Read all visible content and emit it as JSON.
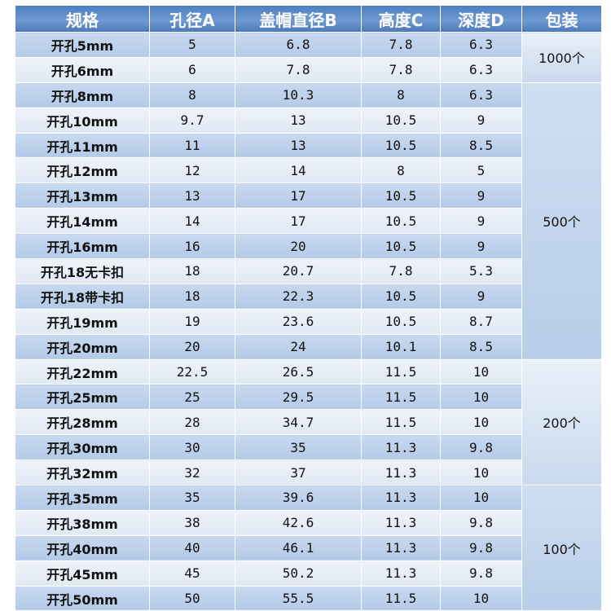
{
  "header": [
    "规格",
    "孔径A",
    "盖帽直径B",
    "高度C",
    "深度D",
    "包装"
  ],
  "rows": [
    [
      "开孔5mm",
      "5",
      "6.8",
      "7.8",
      "6.3"
    ],
    [
      "开孔6mm",
      "6",
      "7.8",
      "7.8",
      "6.3"
    ],
    [
      "开孔8mm",
      "8",
      "10.3",
      "8",
      "6.3"
    ],
    [
      "开孔10mm",
      "9.7",
      "13",
      "10.5",
      "9"
    ],
    [
      "开孔11mm",
      "11",
      "13",
      "10.5",
      "8.5"
    ],
    [
      "开孔12mm",
      "12",
      "14",
      "8",
      "5"
    ],
    [
      "开孔13mm",
      "13",
      "17",
      "10.5",
      "9"
    ],
    [
      "开孔14mm",
      "14",
      "17",
      "10.5",
      "9"
    ],
    [
      "开孔16mm",
      "16",
      "20",
      "10.5",
      "9"
    ],
    [
      "开孔18无卡扣",
      "18",
      "20.7",
      "7.8",
      "5.3"
    ],
    [
      "开孔18带卡扣",
      "18",
      "22.3",
      "10.5",
      "9"
    ],
    [
      "开孔19mm",
      "19",
      "23.6",
      "10.5",
      "8.7"
    ],
    [
      "开孔20mm",
      "20",
      "24",
      "10.1",
      "8.5"
    ],
    [
      "开孔22mm",
      "22.5",
      "26.5",
      "11.5",
      "10"
    ],
    [
      "开孔25mm",
      "25",
      "29.5",
      "11.5",
      "10"
    ],
    [
      "开孔28mm",
      "28",
      "34.7",
      "11.5",
      "10"
    ],
    [
      "开孔30mm",
      "30",
      "35",
      "11.3",
      "9.8"
    ],
    [
      "开孔32mm",
      "32",
      "37",
      "11.3",
      "10"
    ],
    [
      "开孔35mm",
      "35",
      "39.6",
      "11.3",
      "10"
    ],
    [
      "开孔38mm",
      "38",
      "42.6",
      "11.3",
      "9.8"
    ],
    [
      "开孔40mm",
      "40",
      "46.1",
      "11.3",
      "9.8"
    ],
    [
      "开孔45mm",
      "45",
      "50.2",
      "11.3",
      "9.8"
    ],
    [
      "开孔50mm",
      "50",
      "55.5",
      "11.5",
      "10"
    ]
  ],
  "packaging": [
    "1000个",
    "500个",
    "200个",
    "100个"
  ]
}
